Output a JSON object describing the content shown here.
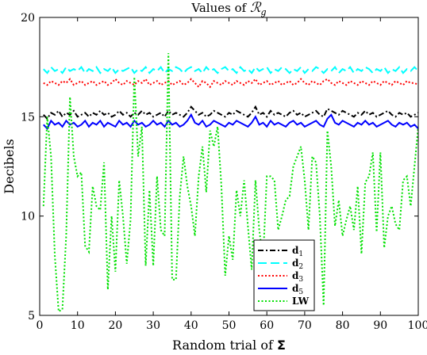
{
  "chart_data": {
    "type": "line",
    "title": "Values of ℛᵧ",
    "title_main": "Values of ",
    "title_math": "ℛ",
    "title_sub": "g",
    "xlabel": "Random trial of ",
    "xlabel_math": "Σ",
    "ylabel": "Decibels",
    "xlim": [
      0,
      100
    ],
    "ylim": [
      5,
      20
    ],
    "x_ticks": [
      0,
      10,
      20,
      30,
      40,
      50,
      60,
      70,
      80,
      90,
      100
    ],
    "y_ticks": [
      5,
      10,
      15,
      20
    ],
    "grid": false,
    "legend_position": "bottom-right",
    "x": [
      1,
      2,
      3,
      4,
      5,
      6,
      7,
      8,
      9,
      10,
      11,
      12,
      13,
      14,
      15,
      16,
      17,
      18,
      19,
      20,
      21,
      22,
      23,
      24,
      25,
      26,
      27,
      28,
      29,
      30,
      31,
      32,
      33,
      34,
      35,
      36,
      37,
      38,
      39,
      40,
      41,
      42,
      43,
      44,
      45,
      46,
      47,
      48,
      49,
      50,
      51,
      52,
      53,
      54,
      55,
      56,
      57,
      58,
      59,
      60,
      61,
      62,
      63,
      64,
      65,
      66,
      67,
      68,
      69,
      70,
      71,
      72,
      73,
      74,
      75,
      76,
      77,
      78,
      79,
      80,
      81,
      82,
      83,
      84,
      85,
      86,
      87,
      88,
      89,
      90,
      91,
      92,
      93,
      94,
      95,
      96,
      97,
      98,
      99,
      100
    ],
    "series": [
      {
        "name": "d",
        "sub": "1",
        "color": "#000000",
        "dash": "7,3,2,3",
        "width": 2,
        "values": [
          15.1,
          14.9,
          15.2,
          15.1,
          15.3,
          15.0,
          15.2,
          15.1,
          15.3,
          15.0,
          15.1,
          15.2,
          15.0,
          15.2,
          15.1,
          15.3,
          15.1,
          15.2,
          15.0,
          15.1,
          15.3,
          15.1,
          15.2,
          15.0,
          15.2,
          15.1,
          15.3,
          15.1,
          15.2,
          15.0,
          15.1,
          15.2,
          15.0,
          15.3,
          15.1,
          15.2,
          15.1,
          15.0,
          15.2,
          15.5,
          15.3,
          15.1,
          15.2,
          15.0,
          15.1,
          15.3,
          15.2,
          15.1,
          15.0,
          15.2,
          15.1,
          15.3,
          15.2,
          15.1,
          15.0,
          15.2,
          15.5,
          15.1,
          15.2,
          15.0,
          15.3,
          15.1,
          15.2,
          15.1,
          15.0,
          15.2,
          15.3,
          15.1,
          15.2,
          15.0,
          15.1,
          15.2,
          15.3,
          15.1,
          15.0,
          15.4,
          15.3,
          15.2,
          15.1,
          15.3,
          15.2,
          15.1,
          15.0,
          15.2,
          15.1,
          15.3,
          15.1,
          15.2,
          15.0,
          15.1,
          15.2,
          15.3,
          15.1,
          15.0,
          15.2,
          15.1,
          15.2,
          15.0,
          15.1,
          15.2
        ]
      },
      {
        "name": "d",
        "sub": "2",
        "color": "#00ffff",
        "dash": "11,5",
        "width": 2,
        "values": [
          17.4,
          17.2,
          17.5,
          17.3,
          17.4,
          17.2,
          17.5,
          17.3,
          17.4,
          17.3,
          17.5,
          17.2,
          17.4,
          17.3,
          17.5,
          17.2,
          17.4,
          17.3,
          17.5,
          17.2,
          17.4,
          17.3,
          17.4,
          17.5,
          17.2,
          17.4,
          17.3,
          17.5,
          17.2,
          17.4,
          17.3,
          17.5,
          17.2,
          17.4,
          17.3,
          17.5,
          17.4,
          17.2,
          17.4,
          17.5,
          17.3,
          17.4,
          17.2,
          17.5,
          17.3,
          17.4,
          17.2,
          17.4,
          17.5,
          17.3,
          17.4,
          17.2,
          17.5,
          17.3,
          17.4,
          17.2,
          17.5,
          17.3,
          17.4,
          17.5,
          17.2,
          17.4,
          17.3,
          17.5,
          17.4,
          17.2,
          17.4,
          17.3,
          17.5,
          17.2,
          17.4,
          17.3,
          17.5,
          17.4,
          17.2,
          17.4,
          17.3,
          17.5,
          17.2,
          17.4,
          17.3,
          17.5,
          17.2,
          17.4,
          17.3,
          17.5,
          17.4,
          17.2,
          17.4,
          17.3,
          17.5,
          17.2,
          17.4,
          17.3,
          17.5,
          17.2,
          17.4,
          17.3,
          17.5,
          17.3
        ]
      },
      {
        "name": "d",
        "sub": "3",
        "color": "#ff0000",
        "dash": "2,2.5",
        "width": 2,
        "values": [
          16.7,
          16.6,
          16.8,
          16.7,
          16.6,
          16.8,
          16.7,
          16.9,
          16.6,
          16.7,
          16.8,
          16.6,
          16.7,
          16.8,
          16.6,
          16.7,
          16.8,
          16.6,
          16.7,
          16.9,
          16.7,
          16.6,
          16.8,
          16.7,
          16.6,
          16.8,
          16.7,
          16.9,
          16.6,
          16.7,
          16.8,
          16.6,
          16.7,
          16.8,
          16.6,
          16.7,
          16.8,
          16.6,
          16.7,
          16.9,
          16.7,
          16.5,
          16.8,
          16.7,
          16.5,
          16.8,
          16.7,
          16.6,
          16.8,
          16.7,
          16.6,
          16.8,
          16.7,
          16.6,
          16.8,
          16.7,
          16.9,
          16.6,
          16.7,
          16.8,
          16.6,
          16.7,
          16.8,
          16.6,
          16.7,
          16.8,
          16.6,
          16.7,
          16.9,
          16.7,
          16.6,
          16.8,
          16.7,
          16.6,
          16.8,
          16.9,
          16.7,
          16.6,
          16.8,
          16.7,
          16.6,
          16.8,
          16.7,
          16.6,
          16.8,
          16.7,
          16.6,
          16.8,
          16.7,
          16.6,
          16.8,
          16.7,
          16.6,
          16.8,
          16.7,
          16.6,
          16.8,
          16.7,
          16.7,
          16.6
        ]
      },
      {
        "name": "d",
        "sub": "5",
        "color": "#0000ff",
        "dash": "",
        "width": 2,
        "values": [
          14.6,
          14.4,
          14.8,
          14.6,
          14.7,
          14.5,
          14.8,
          14.6,
          14.7,
          14.5,
          14.6,
          14.8,
          14.5,
          14.7,
          14.6,
          14.8,
          14.5,
          14.7,
          14.6,
          14.5,
          14.8,
          14.6,
          14.7,
          14.5,
          14.8,
          14.6,
          14.7,
          14.5,
          14.6,
          14.8,
          14.6,
          14.7,
          14.5,
          14.8,
          14.6,
          14.7,
          14.5,
          14.6,
          14.8,
          15.1,
          14.7,
          14.6,
          14.8,
          14.5,
          14.6,
          14.8,
          14.7,
          14.6,
          14.5,
          14.7,
          14.6,
          14.8,
          14.7,
          14.6,
          14.5,
          14.7,
          15.0,
          14.6,
          14.7,
          14.5,
          14.8,
          14.6,
          14.7,
          14.6,
          14.5,
          14.7,
          14.8,
          14.6,
          14.7,
          14.5,
          14.6,
          14.7,
          14.8,
          14.6,
          14.5,
          14.9,
          15.1,
          14.7,
          14.6,
          14.8,
          14.7,
          14.6,
          14.5,
          14.7,
          14.6,
          14.8,
          14.6,
          14.7,
          14.5,
          14.6,
          14.7,
          14.8,
          14.6,
          14.5,
          14.7,
          14.6,
          14.7,
          14.5,
          14.6,
          14.4
        ]
      },
      {
        "name": "LW",
        "sub": "",
        "color": "#00e000",
        "dash": "2,2.5",
        "width": 2,
        "values": [
          10.5,
          15.0,
          13.0,
          8.0,
          5.2,
          5.3,
          9.0,
          16.0,
          13.0,
          12.0,
          12.2,
          8.5,
          8.2,
          11.5,
          10.5,
          10.3,
          12.7,
          6.3,
          10.0,
          7.2,
          11.8,
          10.0,
          7.6,
          9.8,
          17.0,
          13.0,
          14.5,
          7.5,
          11.3,
          7.5,
          12.0,
          9.3,
          9.0,
          18.2,
          6.8,
          6.8,
          11.0,
          13.0,
          11.5,
          10.5,
          9.0,
          12.0,
          13.5,
          11.2,
          14.3,
          13.5,
          14.5,
          11.5,
          7.0,
          9.0,
          7.8,
          11.3,
          10.0,
          11.8,
          9.5,
          7.3,
          11.8,
          9.3,
          7.8,
          12.0,
          12.0,
          11.8,
          9.3,
          10.0,
          10.8,
          11.0,
          12.5,
          13.0,
          13.5,
          11.8,
          9.3,
          13.0,
          12.7,
          10.0,
          5.5,
          14.3,
          12.5,
          9.5,
          10.8,
          9.0,
          9.8,
          10.5,
          9.3,
          11.5,
          8.1,
          11.7,
          12.0,
          13.2,
          9.2,
          13.2,
          8.4,
          10.0,
          10.5,
          9.6,
          9.3,
          11.8,
          12.0,
          10.5,
          12.5,
          14.5
        ]
      }
    ]
  }
}
